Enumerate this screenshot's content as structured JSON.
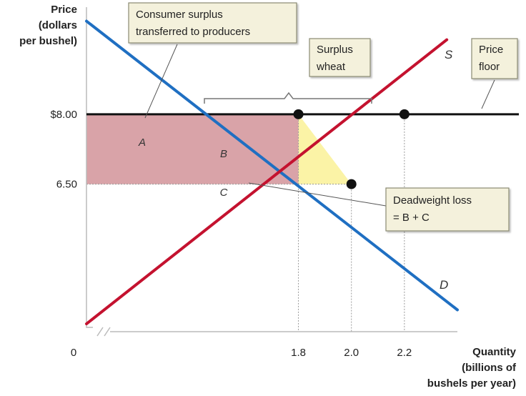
{
  "chart_data": {
    "type": "line",
    "axes": {
      "y_title_lines": [
        "Price",
        "(dollars",
        "per bushel)"
      ],
      "x_title_lines": [
        "Quantity",
        "(billions of",
        "bushels per year)"
      ],
      "origin_label": "0",
      "x_ticks": [
        {
          "value": 1.8,
          "label": "1.8"
        },
        {
          "value": 2.0,
          "label": "2.0"
        },
        {
          "value": 2.2,
          "label": "2.2"
        }
      ],
      "y_ticks": [
        {
          "value": 8.0,
          "label": "$8.00"
        },
        {
          "value": 6.5,
          "label": "6.50"
        }
      ],
      "axis_break": true,
      "xlim": [
        1.0,
        2.4
      ],
      "ylim": [
        3.7,
        10.3
      ]
    },
    "series": [
      {
        "name": "D",
        "color": "#1f6fc2",
        "points": [
          [
            1.0,
            10.0
          ],
          [
            2.4,
            3.8
          ]
        ]
      },
      {
        "name": "S",
        "color": "#c4122f",
        "points": [
          [
            1.0,
            3.5
          ],
          [
            2.36,
            9.6
          ]
        ]
      }
    ],
    "price_floor": {
      "price": 8.0,
      "color": "#111111"
    },
    "equilibrium": {
      "quantity": 2.0,
      "price": 6.5
    },
    "points": [
      {
        "x": 1.8,
        "y": 8.0
      },
      {
        "x": 2.0,
        "y": 6.5
      },
      {
        "x": 2.2,
        "y": 8.0
      }
    ],
    "regions": [
      {
        "label": "A",
        "color": "#d9a3a8"
      },
      {
        "label": "B",
        "color": "#fbf3a6"
      },
      {
        "label": "C",
        "color": "#fbf3a6"
      }
    ],
    "annotations": [
      {
        "id": "consumer-surplus",
        "lines": [
          "Consumer surplus",
          "transferred to producers"
        ]
      },
      {
        "id": "surplus-wheat",
        "lines": [
          "Surplus",
          "wheat"
        ]
      },
      {
        "id": "price-floor",
        "lines": [
          "Price",
          "floor"
        ]
      },
      {
        "id": "deadweight-loss",
        "lines": [
          "Deadweight loss",
          "= B + C"
        ]
      }
    ],
    "grid": false
  }
}
